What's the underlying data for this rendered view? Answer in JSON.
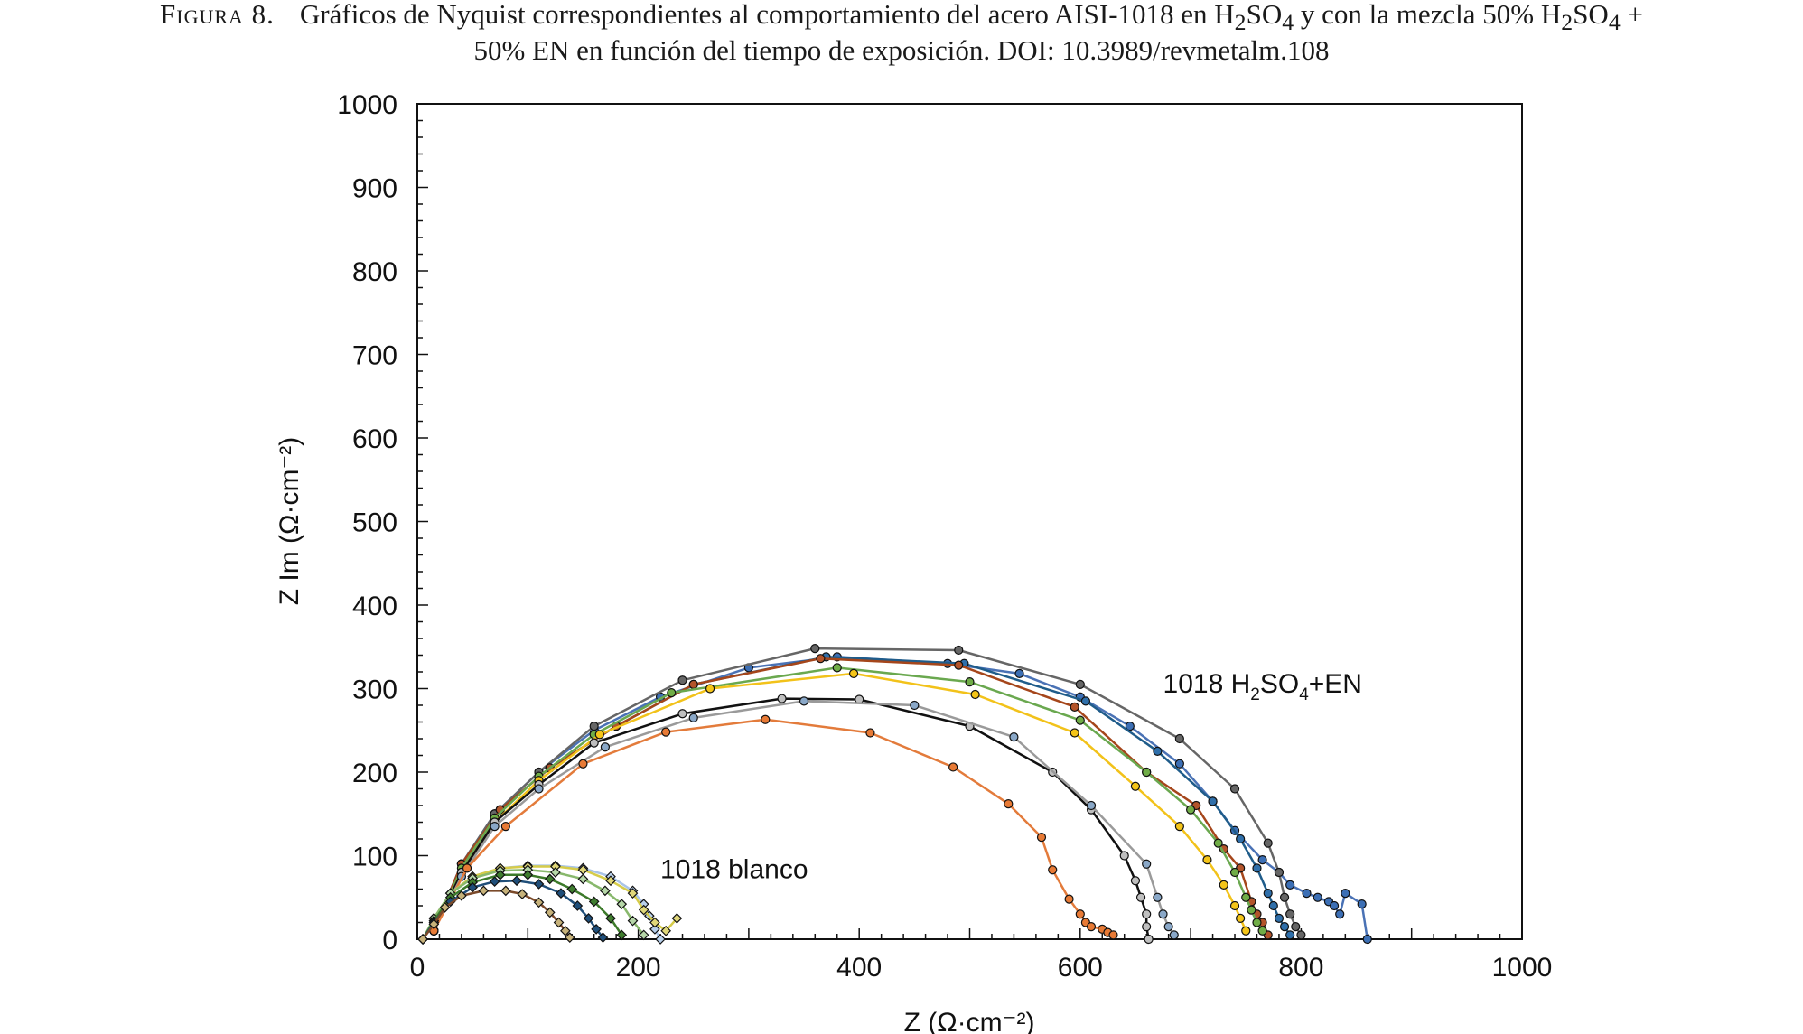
{
  "caption": {
    "figure_label": "Figura 8.",
    "line1_pre": "Gráficos de Nyquist correspondientes al comportamiento del acero AISI-1018 en H",
    "line1_sub1": "2",
    "line1_mid1": "SO",
    "line1_sub2": "4",
    "line1_mid2": " y con la mezcla 50% H",
    "line1_sub3": "2",
    "line1_mid3": "SO",
    "line1_sub4": "4",
    "line1_end": " +",
    "line2": "50% EN en función del tiempo de exposición. DOI: 10.3989/revmetalm.108"
  },
  "chart_data": {
    "type": "scatter",
    "title": "",
    "xlabel": "Z (Ω·cm⁻²)",
    "ylabel": "Z Im (Ω·cm⁻²)",
    "xlim": [
      0,
      1000
    ],
    "ylim": [
      0,
      1000
    ],
    "xticks": [
      "0",
      "200",
      "400",
      "600",
      "800",
      "1000"
    ],
    "yticks": [
      "0",
      "100",
      "200",
      "300",
      "400",
      "500",
      "600",
      "700",
      "800",
      "900",
      "1000"
    ],
    "grid": false,
    "legend": "none",
    "annotations": [
      {
        "text": "1018 H",
        "sub1": "2",
        "mid": "SO",
        "sub2": "4",
        "end": "+EN",
        "x": 675,
        "y": 295
      },
      {
        "text": "1018 blanco",
        "x": 220,
        "y": 73
      }
    ],
    "series_groups": [
      {
        "group": "1018 H2SO4+EN",
        "marker": "circle",
        "series": [
          {
            "line_color": "#4a72b5",
            "marker_color": "#3c6fb5",
            "x": [
              15,
              40,
              70,
              110,
              160,
              220,
              300,
              380,
              480,
              545,
              600,
              645,
              690,
              720,
              740,
              765,
              780,
              790,
              805,
              815,
              825,
              830,
              835,
              840,
              855,
              860
            ],
            "y": [
              10,
              90,
              150,
              200,
              250,
              290,
              325,
              338,
              330,
              318,
              290,
              255,
              210,
              165,
              130,
              95,
              80,
              65,
              55,
              50,
              45,
              40,
              30,
              55,
              42,
              0
            ]
          },
          {
            "line_color": "#666666",
            "marker_color": "#666666",
            "x": [
              15,
              40,
              70,
              110,
              160,
              240,
              360,
              490,
              600,
              690,
              740,
              770,
              780,
              785,
              790,
              795,
              800
            ],
            "y": [
              10,
              90,
              150,
              200,
              255,
              310,
              348,
              346,
              305,
              240,
              180,
              115,
              80,
              50,
              30,
              15,
              5
            ]
          },
          {
            "line_color": "#1f5c8a",
            "marker_color": "#2f6faa",
            "x": [
              15,
              40,
              75,
              120,
              180,
              250,
              370,
              495,
              605,
              670,
              720,
              745,
              760,
              770,
              775,
              780,
              785,
              790
            ],
            "y": [
              10,
              90,
              155,
              205,
              255,
              305,
              338,
              330,
              285,
              225,
              165,
              120,
              85,
              55,
              40,
              25,
              15,
              5
            ]
          },
          {
            "line_color": "#a5461b",
            "marker_color": "#b3542a",
            "x": [
              15,
              40,
              75,
              120,
              180,
              250,
              365,
              490,
              595,
              660,
              705,
              730,
              745,
              755,
              760,
              765,
              770
            ],
            "y": [
              10,
              90,
              155,
              205,
              255,
              305,
              336,
              328,
              278,
              200,
              160,
              108,
              85,
              45,
              30,
              20,
              5
            ]
          },
          {
            "line_color": "#6aa84f",
            "marker_color": "#70ad47",
            "x": [
              15,
              40,
              70,
              110,
              160,
              230,
              380,
              500,
              600,
              660,
              700,
              725,
              740,
              750,
              755,
              760,
              765
            ],
            "y": [
              10,
              85,
              145,
              195,
              245,
              295,
              325,
              308,
              262,
              200,
              155,
              115,
              80,
              50,
              35,
              20,
              10
            ]
          },
          {
            "line_color": "#f2c21a",
            "marker_color": "#f5c518",
            "x": [
              15,
              40,
              70,
              110,
              165,
              265,
              395,
              505,
              595,
              650,
              690,
              715,
              730,
              740,
              745,
              750
            ],
            "y": [
              10,
              80,
              140,
              190,
              245,
              300,
              318,
              293,
              247,
              183,
              135,
              95,
              65,
              40,
              25,
              10
            ]
          },
          {
            "line_color": "#111111",
            "marker_color": "#bfbfbf",
            "x": [
              15,
              40,
              70,
              110,
              160,
              240,
              330,
              400,
              500,
              575,
              610,
              640,
              650,
              655,
              660,
              660,
              662
            ],
            "y": [
              10,
              80,
              140,
              185,
              235,
              270,
              288,
              287,
              255,
              200,
              155,
              100,
              70,
              50,
              30,
              15,
              0
            ]
          },
          {
            "line_color": "#9a9a9a",
            "marker_color": "#8aa8c8",
            "x": [
              15,
              40,
              70,
              110,
              170,
              250,
              350,
              450,
              540,
              610,
              660,
              670,
              675,
              680,
              685
            ],
            "y": [
              10,
              75,
              135,
              180,
              230,
              265,
              285,
              280,
              242,
              160,
              90,
              50,
              30,
              15,
              5
            ]
          },
          {
            "line_color": "#e37b3b",
            "marker_color": "#e87a35",
            "x": [
              15,
              45,
              80,
              150,
              225,
              315,
              410,
              485,
              535,
              565,
              575,
              590,
              600,
              605,
              610,
              620,
              625,
              630
            ],
            "y": [
              10,
              85,
              135,
              210,
              248,
              263,
              247,
              206,
              162,
              122,
              83,
              48,
              30,
              20,
              15,
              12,
              8,
              5
            ]
          }
        ]
      },
      {
        "group": "1018 blanco",
        "marker": "diamond",
        "series": [
          {
            "line_color": "#a9c4e8",
            "marker_color": "#b8d0ec",
            "x": [
              5,
              15,
              30,
              50,
              75,
              100,
              125,
              150,
              175,
              195,
              205,
              210,
              215,
              220
            ],
            "y": [
              0,
              25,
              55,
              75,
              85,
              88,
              88,
              85,
              75,
              58,
              42,
              28,
              12,
              0
            ]
          },
          {
            "line_color": "#d6cc4a",
            "marker_color": "#e0d77a",
            "x": [
              5,
              15,
              30,
              50,
              75,
              100,
              125,
              150,
              175,
              195,
              205,
              215,
              225,
              235
            ],
            "y": [
              0,
              25,
              55,
              75,
              85,
              87,
              87,
              83,
              70,
              55,
              35,
              20,
              10,
              25
            ]
          },
          {
            "line_color": "#88b86c",
            "marker_color": "#b6d7a8",
            "x": [
              5,
              15,
              30,
              50,
              75,
              100,
              125,
              150,
              170,
              185,
              195,
              205
            ],
            "y": [
              0,
              25,
              55,
              73,
              82,
              83,
              80,
              72,
              58,
              42,
              22,
              5
            ]
          },
          {
            "line_color": "#3c7a2a",
            "marker_color": "#3f7d2f",
            "x": [
              5,
              15,
              30,
              50,
              75,
              100,
              120,
              140,
              160,
              175,
              185
            ],
            "y": [
              0,
              22,
              50,
              68,
              77,
              77,
              72,
              60,
              45,
              25,
              5
            ]
          },
          {
            "line_color": "#1f4e79",
            "marker_color": "#1f4e79",
            "x": [
              5,
              15,
              30,
              50,
              70,
              90,
              110,
              130,
              145,
              155,
              162,
              168
            ],
            "y": [
              0,
              20,
              45,
              62,
              69,
              70,
              66,
              55,
              40,
              25,
              12,
              2
            ]
          },
          {
            "line_color": "#7b4a2a",
            "marker_color": "#c7b27a",
            "x": [
              5,
              15,
              25,
              40,
              60,
              80,
              95,
              110,
              120,
              128,
              134,
              138
            ],
            "y": [
              0,
              18,
              38,
              52,
              58,
              58,
              54,
              44,
              32,
              20,
              10,
              2
            ]
          }
        ]
      }
    ]
  }
}
